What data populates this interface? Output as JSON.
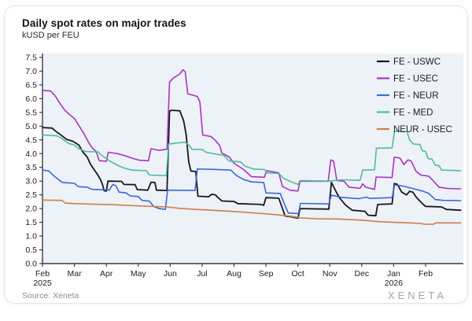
{
  "card": {
    "title": "Daily spot rates on major trades",
    "subtitle": "kUSD per FEU",
    "source": "Source: Xeneta",
    "logo": "XENETA"
  },
  "colors": {
    "plot_bg": "#edf1f8",
    "axis": "#3a3a42",
    "tick_text": "#1c1c22",
    "legend_text": "#1c1c22",
    "card_border": "#e3e4e9"
  },
  "chart_data": {
    "type": "line",
    "title": "Daily spot rates on major trades",
    "ylabel": "kUSD per FEU",
    "grid": false,
    "legend_position": "top-right",
    "x_axis": {
      "unit": "months since Feb 2025",
      "tick_labels": [
        "Feb",
        "Mar",
        "Apr",
        "May",
        "Jun",
        "Jul",
        "Aug",
        "Sep",
        "Oct",
        "Nov",
        "Dec",
        "Jan",
        "Feb"
      ],
      "tick_sublabels": [
        "2025",
        "",
        "",
        "",
        "",
        "",
        "",
        "",
        "",
        "",
        "",
        "2026",
        ""
      ]
    },
    "y_axis": {
      "min": 0,
      "max": 7.5,
      "step": 0.5,
      "tick_labels": [
        "0.0",
        "0.5",
        "1.0",
        "1.5",
        "2.0",
        "2.5",
        "3.0",
        "3.5",
        "4.0",
        "4.5",
        "5.0",
        "5.5",
        "6.0",
        "6.5",
        "7.0",
        "7.5"
      ]
    },
    "series": [
      {
        "name": "FE - USWC",
        "color": "#17171e",
        "width": 1.8,
        "points": [
          [
            0,
            4.95
          ],
          [
            0.3,
            4.93
          ],
          [
            0.45,
            4.78
          ],
          [
            0.6,
            4.66
          ],
          [
            0.75,
            4.52
          ],
          [
            0.95,
            4.45
          ],
          [
            1.05,
            4.38
          ],
          [
            1.15,
            4.3
          ],
          [
            1.25,
            4.08
          ],
          [
            1.4,
            3.88
          ],
          [
            1.5,
            3.62
          ],
          [
            1.6,
            3.45
          ],
          [
            1.72,
            3.25
          ],
          [
            1.82,
            3.05
          ],
          [
            1.88,
            2.87
          ],
          [
            1.93,
            2.65
          ],
          [
            2.0,
            2.64
          ],
          [
            2.05,
            3.0
          ],
          [
            2.48,
            2.99
          ],
          [
            2.55,
            2.88
          ],
          [
            2.9,
            2.87
          ],
          [
            2.97,
            2.69
          ],
          [
            3.3,
            2.67
          ],
          [
            3.4,
            2.96
          ],
          [
            3.52,
            2.95
          ],
          [
            3.57,
            2.67
          ],
          [
            3.9,
            2.66
          ],
          [
            3.98,
            5.55
          ],
          [
            4.05,
            5.58
          ],
          [
            4.3,
            5.56
          ],
          [
            4.42,
            5.2
          ],
          [
            4.5,
            4.7
          ],
          [
            4.58,
            3.7
          ],
          [
            4.65,
            3.37
          ],
          [
            4.8,
            3.35
          ],
          [
            4.87,
            2.45
          ],
          [
            5.2,
            2.43
          ],
          [
            5.3,
            2.52
          ],
          [
            5.42,
            2.5
          ],
          [
            5.48,
            2.42
          ],
          [
            5.62,
            2.28
          ],
          [
            6.0,
            2.26
          ],
          [
            6.12,
            2.18
          ],
          [
            6.85,
            2.15
          ],
          [
            6.93,
            2.12
          ],
          [
            7.0,
            2.4
          ],
          [
            7.4,
            2.38
          ],
          [
            7.5,
            2.06
          ],
          [
            7.6,
            1.73
          ],
          [
            7.8,
            1.7
          ],
          [
            8.0,
            1.65
          ],
          [
            8.07,
            2.0
          ],
          [
            8.97,
            1.98
          ],
          [
            9.05,
            2.95
          ],
          [
            9.18,
            2.65
          ],
          [
            9.3,
            2.4
          ],
          [
            9.5,
            2.12
          ],
          [
            9.7,
            1.94
          ],
          [
            10.1,
            1.9
          ],
          [
            10.2,
            1.76
          ],
          [
            10.44,
            1.74
          ],
          [
            10.5,
            2.15
          ],
          [
            10.95,
            2.17
          ],
          [
            11.02,
            2.91
          ],
          [
            11.12,
            2.88
          ],
          [
            11.25,
            2.6
          ],
          [
            11.4,
            2.5
          ],
          [
            11.5,
            2.63
          ],
          [
            11.6,
            2.6
          ],
          [
            11.72,
            2.4
          ],
          [
            11.9,
            2.18
          ],
          [
            12.0,
            2.08
          ],
          [
            12.5,
            2.06
          ],
          [
            12.65,
            1.97
          ],
          [
            13.1,
            1.94
          ]
        ]
      },
      {
        "name": "FE - USEC",
        "color": "#a834bd",
        "width": 1.6,
        "points": [
          [
            0,
            6.3
          ],
          [
            0.25,
            6.28
          ],
          [
            0.4,
            6.1
          ],
          [
            0.55,
            5.82
          ],
          [
            0.7,
            5.58
          ],
          [
            0.85,
            5.42
          ],
          [
            1.0,
            5.28
          ],
          [
            1.15,
            5.0
          ],
          [
            1.3,
            4.72
          ],
          [
            1.45,
            4.4
          ],
          [
            1.55,
            4.22
          ],
          [
            1.68,
            4.08
          ],
          [
            1.78,
            3.74
          ],
          [
            2.0,
            3.72
          ],
          [
            2.06,
            4.05
          ],
          [
            2.35,
            4.0
          ],
          [
            2.6,
            3.92
          ],
          [
            2.85,
            3.82
          ],
          [
            3.05,
            3.76
          ],
          [
            3.32,
            3.74
          ],
          [
            3.4,
            4.18
          ],
          [
            3.65,
            4.12
          ],
          [
            3.9,
            4.16
          ],
          [
            3.98,
            6.6
          ],
          [
            4.1,
            6.75
          ],
          [
            4.3,
            6.9
          ],
          [
            4.4,
            7.05
          ],
          [
            4.47,
            6.98
          ],
          [
            4.55,
            6.18
          ],
          [
            4.85,
            6.08
          ],
          [
            4.93,
            5.88
          ],
          [
            5.02,
            4.68
          ],
          [
            5.28,
            4.62
          ],
          [
            5.4,
            4.5
          ],
          [
            5.55,
            4.3
          ],
          [
            5.62,
            4.02
          ],
          [
            5.85,
            3.88
          ],
          [
            6.0,
            3.65
          ],
          [
            6.3,
            3.42
          ],
          [
            6.55,
            3.16
          ],
          [
            6.95,
            3.14
          ],
          [
            7.02,
            3.38
          ],
          [
            7.4,
            3.3
          ],
          [
            7.52,
            2.8
          ],
          [
            7.75,
            2.67
          ],
          [
            8.0,
            2.64
          ],
          [
            8.07,
            3.0
          ],
          [
            8.95,
            2.99
          ],
          [
            9.03,
            3.77
          ],
          [
            9.12,
            3.72
          ],
          [
            9.22,
            3.02
          ],
          [
            9.45,
            2.99
          ],
          [
            9.6,
            2.78
          ],
          [
            9.95,
            2.74
          ],
          [
            10.03,
            2.9
          ],
          [
            10.12,
            2.78
          ],
          [
            10.4,
            2.7
          ],
          [
            10.45,
            3.15
          ],
          [
            10.95,
            3.13
          ],
          [
            11.02,
            3.87
          ],
          [
            11.2,
            3.84
          ],
          [
            11.32,
            3.6
          ],
          [
            11.45,
            3.77
          ],
          [
            11.55,
            3.73
          ],
          [
            11.7,
            3.36
          ],
          [
            11.85,
            3.22
          ],
          [
            12.1,
            3.18
          ],
          [
            12.25,
            3.0
          ],
          [
            12.42,
            2.78
          ],
          [
            12.7,
            2.73
          ],
          [
            13.1,
            2.72
          ]
        ]
      },
      {
        "name": "FE - NEUR",
        "color": "#3b68d8",
        "width": 1.6,
        "points": [
          [
            0,
            3.4
          ],
          [
            0.2,
            3.37
          ],
          [
            0.35,
            3.2
          ],
          [
            0.5,
            3.06
          ],
          [
            0.62,
            2.95
          ],
          [
            1.0,
            2.92
          ],
          [
            1.12,
            2.8
          ],
          [
            1.4,
            2.78
          ],
          [
            1.55,
            2.7
          ],
          [
            2.1,
            2.68
          ],
          [
            2.2,
            2.88
          ],
          [
            2.3,
            2.83
          ],
          [
            2.4,
            2.6
          ],
          [
            2.62,
            2.57
          ],
          [
            2.75,
            2.46
          ],
          [
            3.0,
            2.44
          ],
          [
            3.12,
            2.3
          ],
          [
            3.35,
            2.27
          ],
          [
            3.48,
            2.08
          ],
          [
            3.65,
            2.0
          ],
          [
            3.85,
            1.97
          ],
          [
            3.92,
            2.67
          ],
          [
            4.78,
            2.66
          ],
          [
            4.85,
            3.44
          ],
          [
            5.3,
            3.43
          ],
          [
            5.9,
            3.4
          ],
          [
            6.08,
            3.2
          ],
          [
            6.3,
            3.06
          ],
          [
            6.55,
            2.97
          ],
          [
            6.93,
            2.95
          ],
          [
            7.0,
            2.57
          ],
          [
            7.45,
            2.55
          ],
          [
            7.55,
            2.25
          ],
          [
            7.7,
            1.84
          ],
          [
            8.02,
            1.82
          ],
          [
            8.08,
            2.19
          ],
          [
            8.97,
            2.17
          ],
          [
            9.05,
            2.49
          ],
          [
            9.35,
            2.41
          ],
          [
            9.9,
            2.36
          ],
          [
            10.15,
            2.42
          ],
          [
            10.25,
            2.37
          ],
          [
            10.95,
            2.4
          ],
          [
            11.03,
            2.86
          ],
          [
            11.3,
            2.82
          ],
          [
            11.6,
            2.73
          ],
          [
            11.9,
            2.64
          ],
          [
            12.1,
            2.55
          ],
          [
            12.3,
            2.33
          ],
          [
            12.55,
            2.3
          ],
          [
            13.1,
            2.29
          ]
        ]
      },
      {
        "name": "FE - MED",
        "color": "#4cbda1",
        "width": 1.6,
        "points": [
          [
            0,
            4.68
          ],
          [
            0.45,
            4.65
          ],
          [
            0.6,
            4.56
          ],
          [
            0.8,
            4.38
          ],
          [
            1.0,
            4.31
          ],
          [
            1.15,
            4.17
          ],
          [
            1.35,
            4.08
          ],
          [
            1.75,
            4.06
          ],
          [
            1.85,
            3.94
          ],
          [
            2.0,
            3.82
          ],
          [
            2.15,
            3.7
          ],
          [
            2.4,
            3.55
          ],
          [
            2.6,
            3.46
          ],
          [
            2.8,
            3.4
          ],
          [
            3.25,
            3.38
          ],
          [
            3.35,
            3.22
          ],
          [
            3.88,
            3.2
          ],
          [
            3.95,
            4.35
          ],
          [
            4.2,
            4.38
          ],
          [
            4.45,
            4.42
          ],
          [
            4.6,
            4.3
          ],
          [
            4.68,
            4.16
          ],
          [
            5.0,
            4.15
          ],
          [
            5.12,
            4.05
          ],
          [
            5.55,
            3.96
          ],
          [
            5.68,
            3.94
          ],
          [
            5.85,
            3.73
          ],
          [
            6.2,
            3.7
          ],
          [
            6.35,
            3.54
          ],
          [
            6.6,
            3.44
          ],
          [
            6.95,
            3.42
          ],
          [
            7.05,
            3.3
          ],
          [
            7.4,
            3.28
          ],
          [
            7.55,
            3.1
          ],
          [
            7.78,
            2.98
          ],
          [
            8.0,
            2.88
          ],
          [
            8.07,
            3.02
          ],
          [
            9.0,
            3.0
          ],
          [
            9.35,
            3.05
          ],
          [
            9.95,
            3.03
          ],
          [
            10.03,
            3.4
          ],
          [
            10.4,
            3.41
          ],
          [
            10.46,
            4.2
          ],
          [
            10.95,
            4.21
          ],
          [
            11.03,
            4.82
          ],
          [
            11.42,
            4.8
          ],
          [
            11.5,
            4.49
          ],
          [
            11.62,
            4.35
          ],
          [
            11.82,
            4.33
          ],
          [
            11.9,
            4.1
          ],
          [
            12.0,
            4.08
          ],
          [
            12.08,
            3.82
          ],
          [
            12.2,
            3.8
          ],
          [
            12.3,
            3.58
          ],
          [
            12.42,
            3.56
          ],
          [
            12.5,
            3.4
          ],
          [
            13.1,
            3.38
          ]
        ]
      },
      {
        "name": "NEUR - USEC",
        "color": "#cd7f48",
        "width": 1.6,
        "points": [
          [
            0,
            2.31
          ],
          [
            0.6,
            2.3
          ],
          [
            0.72,
            2.2
          ],
          [
            1.0,
            2.18
          ],
          [
            1.6,
            2.16
          ],
          [
            2.2,
            2.14
          ],
          [
            2.8,
            2.11
          ],
          [
            3.4,
            2.08
          ],
          [
            3.9,
            2.06
          ],
          [
            4.3,
            2.01
          ],
          [
            4.8,
            1.97
          ],
          [
            5.3,
            1.94
          ],
          [
            5.9,
            1.9
          ],
          [
            6.4,
            1.86
          ],
          [
            6.9,
            1.82
          ],
          [
            7.3,
            1.78
          ],
          [
            7.8,
            1.72
          ],
          [
            8.1,
            1.66
          ],
          [
            8.6,
            1.63
          ],
          [
            9.3,
            1.62
          ],
          [
            10.0,
            1.58
          ],
          [
            10.5,
            1.53
          ],
          [
            11.0,
            1.5
          ],
          [
            11.5,
            1.48
          ],
          [
            11.85,
            1.46
          ],
          [
            11.95,
            1.43
          ],
          [
            12.25,
            1.43
          ],
          [
            12.32,
            1.48
          ],
          [
            13.1,
            1.48
          ]
        ]
      }
    ]
  }
}
